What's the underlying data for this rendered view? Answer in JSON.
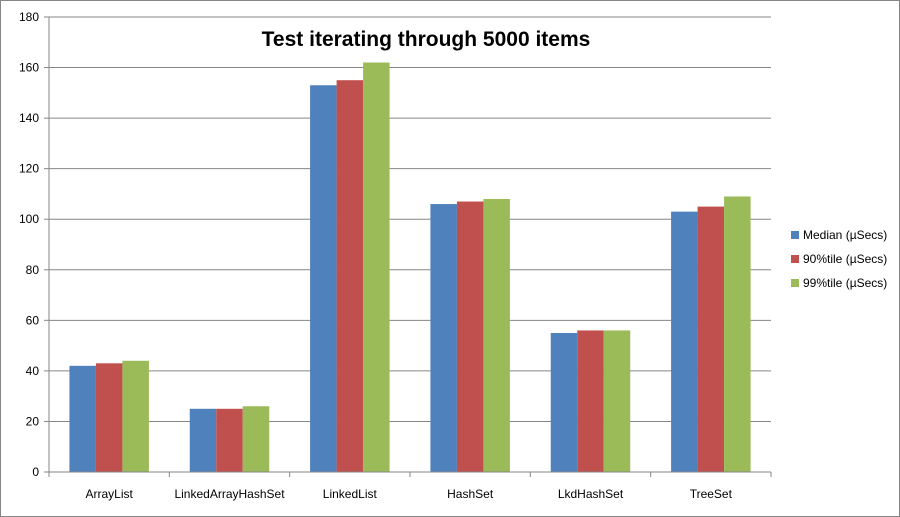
{
  "chart_data": {
    "type": "bar",
    "title": "Test iterating through 5000 items",
    "xlabel": "",
    "ylabel": "",
    "ylim": [
      0,
      180
    ],
    "ytick_step": 20,
    "grid": true,
    "legend_position": "right",
    "categories": [
      "ArrayList",
      "LinkedArrayHashSet",
      "LinkedList",
      "HashSet",
      "LkdHashSet",
      "TreeSet"
    ],
    "series": [
      {
        "name": "Median (µSecs)",
        "color": "#4F81BD",
        "values": [
          42,
          25,
          153,
          106,
          55,
          103
        ]
      },
      {
        "name": "90%tile (µSecs)",
        "color": "#C0504D",
        "values": [
          43,
          25,
          155,
          107,
          56,
          105
        ]
      },
      {
        "name": "99%tile (µSecs)",
        "color": "#9BBB59",
        "values": [
          44,
          26,
          162,
          108,
          56,
          109
        ]
      }
    ]
  }
}
